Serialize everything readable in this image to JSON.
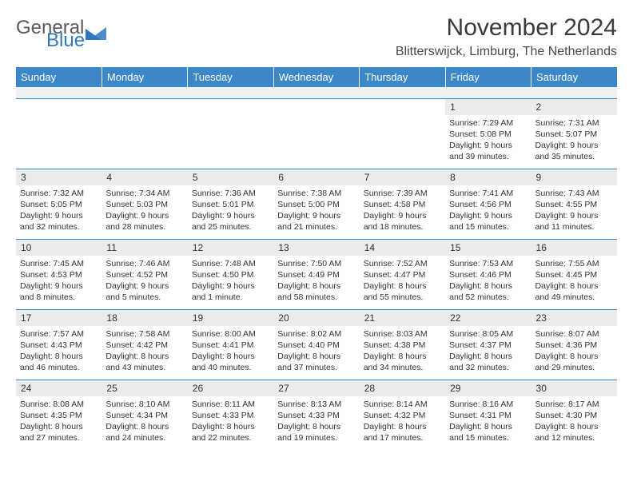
{
  "logo": {
    "word1": "General",
    "word2": "Blue",
    "tri_color": "#2f78bd",
    "text1_color": "#5a5a5a",
    "text2_color": "#2f78bd"
  },
  "header": {
    "title": "November 2024",
    "location": "Blitterswijck, Limburg, The Netherlands"
  },
  "styling": {
    "header_bg": "#3b87c8",
    "header_text": "#ffffff",
    "daynum_bg": "#e9ebec",
    "border_color": "#3b87c8",
    "body_bg": "#ffffff",
    "font_family": "Arial",
    "cell_font_size_pt": 8,
    "title_font_size_pt": 22,
    "location_font_size_pt": 12,
    "columns": 7
  },
  "day_headers": [
    "Sunday",
    "Monday",
    "Tuesday",
    "Wednesday",
    "Thursday",
    "Friday",
    "Saturday"
  ],
  "weeks": [
    [
      {
        "blank": true
      },
      {
        "blank": true
      },
      {
        "blank": true
      },
      {
        "blank": true
      },
      {
        "blank": true
      },
      {
        "n": "1",
        "sr": "7:29 AM",
        "ss": "5:08 PM",
        "dl": "9 hours and 39 minutes."
      },
      {
        "n": "2",
        "sr": "7:31 AM",
        "ss": "5:07 PM",
        "dl": "9 hours and 35 minutes."
      }
    ],
    [
      {
        "n": "3",
        "sr": "7:32 AM",
        "ss": "5:05 PM",
        "dl": "9 hours and 32 minutes."
      },
      {
        "n": "4",
        "sr": "7:34 AM",
        "ss": "5:03 PM",
        "dl": "9 hours and 28 minutes."
      },
      {
        "n": "5",
        "sr": "7:36 AM",
        "ss": "5:01 PM",
        "dl": "9 hours and 25 minutes."
      },
      {
        "n": "6",
        "sr": "7:38 AM",
        "ss": "5:00 PM",
        "dl": "9 hours and 21 minutes."
      },
      {
        "n": "7",
        "sr": "7:39 AM",
        "ss": "4:58 PM",
        "dl": "9 hours and 18 minutes."
      },
      {
        "n": "8",
        "sr": "7:41 AM",
        "ss": "4:56 PM",
        "dl": "9 hours and 15 minutes."
      },
      {
        "n": "9",
        "sr": "7:43 AM",
        "ss": "4:55 PM",
        "dl": "9 hours and 11 minutes."
      }
    ],
    [
      {
        "n": "10",
        "sr": "7:45 AM",
        "ss": "4:53 PM",
        "dl": "9 hours and 8 minutes."
      },
      {
        "n": "11",
        "sr": "7:46 AM",
        "ss": "4:52 PM",
        "dl": "9 hours and 5 minutes."
      },
      {
        "n": "12",
        "sr": "7:48 AM",
        "ss": "4:50 PM",
        "dl": "9 hours and 1 minute."
      },
      {
        "n": "13",
        "sr": "7:50 AM",
        "ss": "4:49 PM",
        "dl": "8 hours and 58 minutes."
      },
      {
        "n": "14",
        "sr": "7:52 AM",
        "ss": "4:47 PM",
        "dl": "8 hours and 55 minutes."
      },
      {
        "n": "15",
        "sr": "7:53 AM",
        "ss": "4:46 PM",
        "dl": "8 hours and 52 minutes."
      },
      {
        "n": "16",
        "sr": "7:55 AM",
        "ss": "4:45 PM",
        "dl": "8 hours and 49 minutes."
      }
    ],
    [
      {
        "n": "17",
        "sr": "7:57 AM",
        "ss": "4:43 PM",
        "dl": "8 hours and 46 minutes."
      },
      {
        "n": "18",
        "sr": "7:58 AM",
        "ss": "4:42 PM",
        "dl": "8 hours and 43 minutes."
      },
      {
        "n": "19",
        "sr": "8:00 AM",
        "ss": "4:41 PM",
        "dl": "8 hours and 40 minutes."
      },
      {
        "n": "20",
        "sr": "8:02 AM",
        "ss": "4:40 PM",
        "dl": "8 hours and 37 minutes."
      },
      {
        "n": "21",
        "sr": "8:03 AM",
        "ss": "4:38 PM",
        "dl": "8 hours and 34 minutes."
      },
      {
        "n": "22",
        "sr": "8:05 AM",
        "ss": "4:37 PM",
        "dl": "8 hours and 32 minutes."
      },
      {
        "n": "23",
        "sr": "8:07 AM",
        "ss": "4:36 PM",
        "dl": "8 hours and 29 minutes."
      }
    ],
    [
      {
        "n": "24",
        "sr": "8:08 AM",
        "ss": "4:35 PM",
        "dl": "8 hours and 27 minutes."
      },
      {
        "n": "25",
        "sr": "8:10 AM",
        "ss": "4:34 PM",
        "dl": "8 hours and 24 minutes."
      },
      {
        "n": "26",
        "sr": "8:11 AM",
        "ss": "4:33 PM",
        "dl": "8 hours and 22 minutes."
      },
      {
        "n": "27",
        "sr": "8:13 AM",
        "ss": "4:33 PM",
        "dl": "8 hours and 19 minutes."
      },
      {
        "n": "28",
        "sr": "8:14 AM",
        "ss": "4:32 PM",
        "dl": "8 hours and 17 minutes."
      },
      {
        "n": "29",
        "sr": "8:16 AM",
        "ss": "4:31 PM",
        "dl": "8 hours and 15 minutes."
      },
      {
        "n": "30",
        "sr": "8:17 AM",
        "ss": "4:30 PM",
        "dl": "8 hours and 12 minutes."
      }
    ]
  ],
  "labels": {
    "sunrise": "Sunrise:",
    "sunset": "Sunset:",
    "daylight": "Daylight:"
  }
}
